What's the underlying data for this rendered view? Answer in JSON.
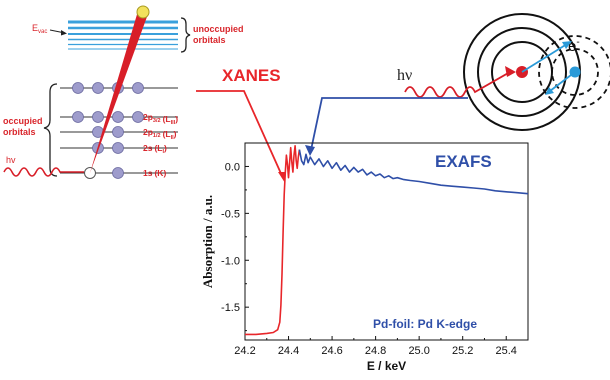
{
  "energy_diagram": {
    "evac_label": "E",
    "evac_sub": "vac",
    "unoccupied_label_line1": "unoccupied",
    "unoccupied_label_line2": "orbitals",
    "occupied_label_line1": "occupied",
    "occupied_label_line2": "orbitals",
    "hv_label": "hv",
    "levels": [
      {
        "main": "2p",
        "sub": "3/2",
        "shell": "(L",
        "shell_sub": "III",
        "close": ")"
      },
      {
        "main": "2p",
        "sub": "1/2",
        "shell": "(L",
        "shell_sub": "II",
        "close": ")"
      },
      {
        "main": "2s",
        "sub": "",
        "shell": "(L",
        "shell_sub": "I",
        "close": ")"
      },
      {
        "main": "1s",
        "sub": "",
        "shell": "(K)",
        "shell_sub": "",
        "close": ""
      }
    ]
  },
  "atom_diagram": {
    "hv_label": "hν",
    "electron_label": "e",
    "electron_sup": "-"
  },
  "region_labels": {
    "xanes": "XANES",
    "exafs": "EXAFS"
  },
  "colors": {
    "xanes": "#e8262a",
    "exafs": "#2f4fa8",
    "orbital_blue": "#3aa0dc",
    "atom_core": "#d81e28",
    "atom_electron": "#2a9ad8",
    "label_red": "#d9262c"
  },
  "chart_data": {
    "type": "line",
    "title": "",
    "annotation": "Pd-foil: Pd K-edge",
    "xlabel": "E / keV",
    "ylabel": "Absorption / a.u.",
    "xlim": [
      24.2,
      25.5
    ],
    "ylim": [
      -1.85,
      0.25
    ],
    "xticks": [
      "24.2",
      "24.4",
      "24.6",
      "24.8",
      "25.0",
      "25.2",
      "25.4"
    ],
    "xtick_values": [
      24.2,
      24.4,
      24.6,
      24.8,
      25.0,
      25.2,
      25.4
    ],
    "yticks": [
      "0.0",
      "-0.5",
      "-1.0",
      "-1.5"
    ],
    "ytick_values": [
      0.0,
      -0.5,
      -1.0,
      -1.5
    ],
    "series": [
      {
        "x": [
          24.2,
          24.25,
          24.3,
          24.33,
          24.35,
          24.36,
          24.365,
          24.37,
          24.375,
          24.38,
          24.385,
          24.39,
          24.395,
          24.4,
          24.405,
          24.41,
          24.415,
          24.42,
          24.425,
          24.43,
          24.435,
          24.44,
          24.445,
          24.45
        ],
        "y": [
          -1.79,
          -1.79,
          -1.78,
          -1.77,
          -1.74,
          -1.66,
          -1.48,
          -1.15,
          -0.7,
          -0.3,
          -0.06,
          0.12,
          0.02,
          -0.12,
          0.04,
          0.2,
          0.05,
          -0.06,
          0.12,
          0.22,
          0.06,
          -0.02,
          0.1,
          0.18
        ]
      },
      {
        "x": [
          24.45,
          24.46,
          24.47,
          24.48,
          24.49,
          24.5,
          24.52,
          24.54,
          24.56,
          24.58,
          24.6,
          24.62,
          24.64,
          24.66,
          24.68,
          24.7,
          24.72,
          24.74,
          24.76,
          24.78,
          24.8,
          24.82,
          24.84,
          24.86,
          24.88,
          24.9,
          24.93,
          24.96,
          25.0,
          25.05,
          25.1,
          25.15,
          25.2,
          25.25,
          25.3,
          25.35,
          25.4,
          25.45,
          25.5
        ],
        "y": [
          0.18,
          0.06,
          0.02,
          0.13,
          0.04,
          0.1,
          0.02,
          0.08,
          0.0,
          0.06,
          -0.02,
          0.04,
          -0.04,
          0.01,
          -0.06,
          -0.01,
          -0.06,
          -0.03,
          -0.09,
          -0.06,
          -0.1,
          -0.08,
          -0.12,
          -0.1,
          -0.13,
          -0.12,
          -0.14,
          -0.15,
          -0.16,
          -0.18,
          -0.2,
          -0.21,
          -0.22,
          -0.23,
          -0.24,
          -0.26,
          -0.27,
          -0.28,
          -0.29
        ]
      }
    ]
  }
}
